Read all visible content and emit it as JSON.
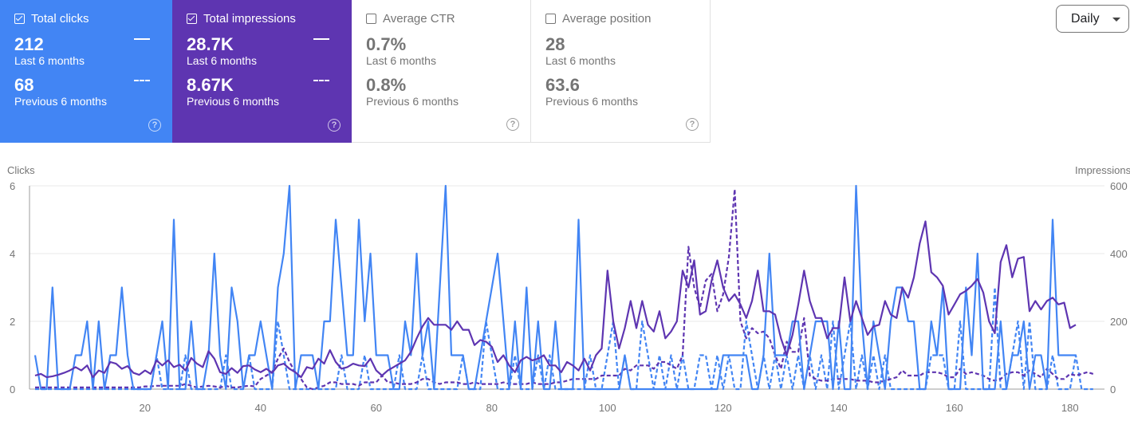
{
  "metrics": [
    {
      "label": "Total clicks",
      "checked": true,
      "current_value": "212",
      "current_label": "Last 6 months",
      "previous_value": "68",
      "previous_label": "Previous 6 months"
    },
    {
      "label": "Total impressions",
      "checked": true,
      "current_value": "28.7K",
      "current_label": "Last 6 months",
      "previous_value": "8.67K",
      "previous_label": "Previous 6 months"
    },
    {
      "label": "Average CTR",
      "checked": false,
      "current_value": "0.7%",
      "current_label": "Last 6 months",
      "previous_value": "0.8%",
      "previous_label": "Previous 6 months"
    },
    {
      "label": "Average position",
      "checked": false,
      "current_value": "28",
      "current_label": "Last 6 months",
      "previous_value": "63.6",
      "previous_label": "Previous 6 months"
    }
  ],
  "help_icon": "?",
  "granularity": {
    "selected": "Daily"
  },
  "chart_data": {
    "type": "line",
    "ylabel_left": "Clicks",
    "ylabel_right": "Impressions",
    "ylim_left": [
      0,
      6
    ],
    "ylim_right": [
      0,
      600
    ],
    "yticks_left": [
      "0",
      "2",
      "4",
      "6"
    ],
    "yticks_right": [
      "0",
      "200",
      "400",
      "600"
    ],
    "xticks": [
      "20",
      "40",
      "60",
      "80",
      "100",
      "120",
      "140",
      "160",
      "180"
    ],
    "xlim": [
      1,
      184
    ],
    "grid": true,
    "colors": {
      "clicks": "#4285f4",
      "impressions": "#5e35b1"
    },
    "series": [
      {
        "name": "Clicks (last 6 months)",
        "axis": "left",
        "style": "solid",
        "color": "#4285f4",
        "values": [
          1,
          0,
          0,
          3,
          0,
          0,
          0,
          1,
          1,
          2,
          0,
          2,
          0,
          1,
          1,
          3,
          1,
          0,
          0,
          0,
          0,
          1,
          2,
          0,
          5,
          0,
          0,
          2,
          0,
          0,
          1,
          4,
          1,
          0,
          3,
          2,
          0,
          1,
          1,
          2,
          1,
          0,
          3,
          4,
          6,
          0,
          1,
          1,
          1,
          0,
          2,
          2,
          5,
          3,
          1,
          1,
          5,
          2,
          4,
          1,
          1,
          1,
          0,
          0,
          2,
          1,
          4,
          1,
          2,
          0,
          3,
          6,
          1,
          1,
          1,
          0,
          0,
          1,
          2,
          3,
          4,
          2,
          0,
          2,
          0,
          3,
          0,
          2,
          0,
          0,
          2,
          0,
          0,
          0,
          5,
          0,
          0,
          0,
          0,
          0,
          0,
          0,
          1,
          0,
          0,
          0,
          0,
          0,
          0,
          0,
          0,
          0,
          0,
          0,
          0,
          0,
          0,
          0,
          0,
          1,
          1,
          1,
          1,
          1,
          0,
          0,
          1,
          4,
          1,
          1,
          1,
          2,
          2,
          0,
          1,
          2,
          2,
          2,
          0,
          2,
          0,
          0,
          6,
          2,
          0,
          2,
          1,
          0,
          2,
          3,
          3,
          2,
          2,
          0,
          0,
          2,
          1,
          3,
          0,
          0,
          0,
          3,
          1,
          4,
          0,
          0,
          0,
          2,
          0,
          1,
          1,
          2,
          0,
          1,
          1,
          0,
          5,
          1,
          1,
          1,
          1
        ]
      },
      {
        "name": "Impressions (last 6 months)",
        "axis": "right",
        "style": "solid",
        "color": "#5e35b1",
        "values": [
          40,
          45,
          35,
          38,
          42,
          48,
          55,
          65,
          55,
          70,
          35,
          55,
          48,
          80,
          75,
          60,
          68,
          48,
          42,
          55,
          45,
          85,
          70,
          85,
          65,
          72,
          55,
          92,
          75,
          65,
          112,
          90,
          50,
          45,
          62,
          48,
          68,
          70,
          58,
          50,
          60,
          48,
          70,
          75,
          60,
          50,
          35,
          65,
          60,
          90,
          75,
          115,
          80,
          60,
          65,
          75,
          70,
          68,
          90,
          55,
          40,
          55,
          65,
          75,
          85,
          110,
          150,
          185,
          210,
          190,
          190,
          190,
          175,
          200,
          175,
          175,
          130,
          145,
          140,
          125,
          80,
          100,
          70,
          50,
          85,
          95,
          85,
          90,
          100,
          70,
          70,
          50,
          80,
          70,
          55,
          90,
          55,
          100,
          120,
          350,
          200,
          120,
          180,
          260,
          180,
          260,
          190,
          170,
          230,
          150,
          170,
          200,
          350,
          300,
          380,
          220,
          230,
          320,
          380,
          300,
          260,
          280,
          250,
          210,
          260,
          350,
          230,
          230,
          220,
          150,
          100,
          160,
          250,
          350,
          260,
          210,
          210,
          150,
          180,
          180,
          330,
          200,
          260,
          210,
          160,
          185,
          190,
          260,
          220,
          210,
          300,
          270,
          330,
          430,
          495,
          345,
          330,
          305,
          220,
          250,
          280,
          290,
          305,
          325,
          285,
          200,
          165,
          375,
          425,
          330,
          385,
          390,
          230,
          260,
          235,
          260,
          270,
          250,
          255,
          180,
          190
        ]
      },
      {
        "name": "Clicks (previous 6 months)",
        "axis": "left",
        "style": "dashed",
        "color": "#4285f4",
        "values": [
          0,
          0,
          0,
          0,
          0,
          0,
          0,
          0,
          0,
          0,
          0,
          0,
          0,
          0,
          0,
          0,
          0,
          0,
          0,
          0,
          0,
          1,
          0,
          0,
          0,
          0,
          1,
          0,
          0,
          0,
          0,
          0,
          0,
          1,
          0,
          0,
          0,
          1,
          0,
          0,
          0,
          0,
          2,
          1,
          0,
          0,
          0,
          0,
          0,
          0,
          0,
          0,
          0,
          1,
          0,
          0,
          0,
          1,
          0,
          0,
          0,
          0,
          0,
          1,
          0,
          0,
          0,
          1,
          0,
          0,
          0,
          0,
          0,
          0,
          1,
          0,
          0,
          0,
          2,
          1,
          0,
          0,
          0,
          1,
          0,
          0,
          0,
          1,
          0,
          1,
          0,
          0,
          0,
          0,
          0,
          0,
          1,
          0,
          0,
          1,
          2,
          0,
          1,
          0,
          0,
          2,
          1,
          0,
          1,
          0,
          1,
          0,
          1,
          0,
          0,
          1,
          1,
          0,
          1,
          0,
          1,
          0,
          0,
          2,
          1,
          0,
          1,
          0,
          1,
          0,
          1,
          0,
          1,
          0,
          1,
          0,
          1,
          0,
          2,
          0,
          1,
          2,
          0,
          1,
          0,
          1,
          0,
          1,
          0,
          0,
          0,
          0,
          0,
          0,
          0,
          1,
          1,
          1,
          0,
          0,
          2,
          0,
          0,
          0,
          0,
          0,
          3,
          0,
          0,
          1,
          2,
          0,
          2,
          0,
          0,
          0,
          1,
          0,
          0,
          0,
          1,
          0,
          0,
          0
        ]
      },
      {
        "name": "Impressions (previous 6 months)",
        "axis": "right",
        "style": "dashed",
        "color": "#5e35b1",
        "values": [
          5,
          5,
          5,
          5,
          5,
          5,
          5,
          5,
          5,
          5,
          5,
          5,
          5,
          5,
          5,
          5,
          5,
          5,
          5,
          8,
          8,
          10,
          10,
          10,
          10,
          10,
          15,
          10,
          5,
          8,
          10,
          8,
          5,
          10,
          5,
          5,
          8,
          10,
          8,
          30,
          40,
          50,
          90,
          120,
          80,
          50,
          30,
          5,
          0,
          5,
          10,
          20,
          20,
          15,
          15,
          15,
          10,
          20,
          20,
          20,
          40,
          20,
          20,
          15,
          15,
          15,
          20,
          30,
          30,
          20,
          15,
          20,
          20,
          20,
          15,
          15,
          20,
          15,
          15,
          15,
          15,
          20,
          15,
          15,
          15,
          15,
          20,
          15,
          15,
          15,
          20,
          20,
          25,
          30,
          30,
          30,
          30,
          30,
          40,
          40,
          40,
          40,
          60,
          55,
          70,
          70,
          70,
          60,
          80,
          80,
          70,
          60,
          100,
          420,
          300,
          240,
          320,
          340,
          230,
          280,
          390,
          590,
          200,
          150,
          180,
          165,
          170,
          150,
          100,
          60,
          140,
          110,
          110,
          210,
          40,
          30,
          25,
          25,
          30,
          30,
          30,
          30,
          25,
          25,
          25,
          20,
          20,
          25,
          30,
          35,
          55,
          40,
          40,
          40,
          50,
          50,
          50,
          45,
          35,
          35,
          60,
          45,
          50,
          45,
          40,
          30,
          25,
          30,
          45,
          50,
          50,
          40,
          55,
          45,
          35,
          60,
          45,
          30,
          30,
          45,
          40,
          45,
          50,
          45
        ]
      }
    ]
  }
}
